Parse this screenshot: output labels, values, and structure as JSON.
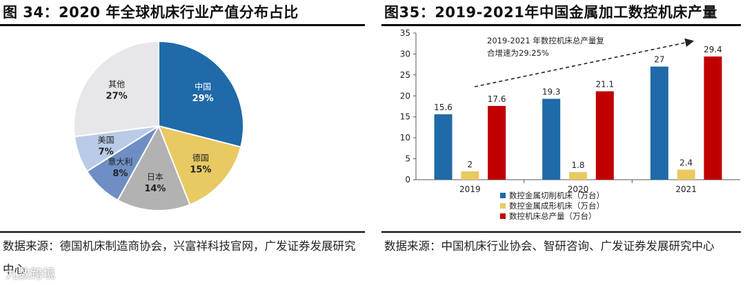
{
  "left_figure": {
    "title": "图 34：2020 年全球机床行业产值分布占比",
    "source": "数据来源：德国机床制造商协会，兴富祥科技官网，广发证券发展研究中心"
  },
  "right_figure": {
    "title": "图35：2019-2021年中国金属加工数控机床产量",
    "source": "数据来源：中国机床行业协会、智研咨询、广发证券发展研究中心"
  },
  "watermark": "九数跨境",
  "chart_data": [
    {
      "type": "pie",
      "title": "2020 年全球机床行业产值分布占比",
      "slices": [
        {
          "label": "中国",
          "value": 29,
          "display": "29%",
          "color": "#1f6aa8"
        },
        {
          "label": "德国",
          "value": 15,
          "display": "15%",
          "color": "#e8c962"
        },
        {
          "label": "日本",
          "value": 14,
          "display": "14%",
          "color": "#b2b2b2"
        },
        {
          "label": "意大利",
          "value": 8,
          "display": "8%",
          "color": "#6f8fc4"
        },
        {
          "label": "美国",
          "value": 7,
          "display": "7%",
          "color": "#b9cbe6"
        },
        {
          "label": "其他",
          "value": 27,
          "display": "27%",
          "color": "#e7e6e8"
        }
      ]
    },
    {
      "type": "bar",
      "title": "2019-2021年中国金属加工数控机床产量",
      "categories": [
        "2019",
        "2020",
        "2021"
      ],
      "series": [
        {
          "name": "数控金属切削机床（万台）",
          "values": [
            15.6,
            19.3,
            27
          ],
          "labels": [
            "15.6",
            "19.3",
            "27"
          ],
          "color": "#1f6aa8"
        },
        {
          "name": "数控金属成形机床（万台）",
          "values": [
            2,
            1.8,
            2.4
          ],
          "labels": [
            "2",
            "1.8",
            "2.4"
          ],
          "color": "#e8c962"
        },
        {
          "name": "数控机床总产量（万台）",
          "values": [
            17.6,
            21.1,
            29.4
          ],
          "labels": [
            "17.6",
            "21.1",
            "29.4"
          ],
          "color": "#c00000"
        }
      ],
      "yticks": [
        "0",
        "5",
        "10",
        "15",
        "20",
        "25",
        "30",
        "35"
      ],
      "ylim": [
        0,
        35
      ],
      "annotation": [
        "2019-2021 年数控机床总产量复",
        "合增速为29.25%"
      ],
      "legend_position": "bottom"
    }
  ]
}
